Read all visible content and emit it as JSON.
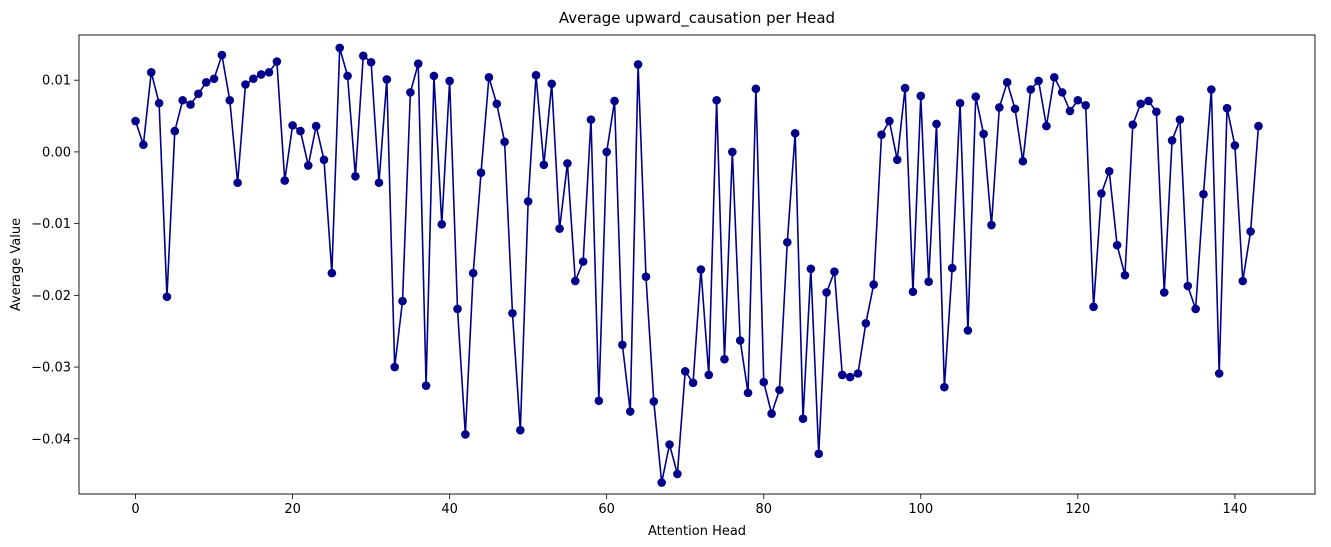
{
  "chart_data": {
    "type": "line",
    "title": "Average upward_causation per Head",
    "xlabel": "Attention Head",
    "ylabel": "Average Value",
    "xlim": [
      -7.2,
      150.2
    ],
    "ylim": [
      -0.0477,
      0.0163
    ],
    "xticks": [
      0,
      20,
      40,
      60,
      80,
      100,
      120,
      140
    ],
    "xtick_labels": [
      "0",
      "20",
      "40",
      "60",
      "80",
      "100",
      "120",
      "140"
    ],
    "yticks": [
      -0.04,
      -0.03,
      -0.02,
      -0.01,
      0.0,
      0.01
    ],
    "ytick_labels": [
      "−0.04",
      "−0.03",
      "−0.02",
      "−0.01",
      "0.00",
      "0.01"
    ],
    "grid": false,
    "legend": false,
    "marker": "circle",
    "colors": {
      "line": "#00008b",
      "marker": "#00008b",
      "axes": "#000000",
      "background": "#ffffff"
    },
    "series": [
      {
        "x": [
          0,
          1,
          2,
          3,
          4,
          5,
          6,
          7,
          8,
          9,
          10,
          11,
          12,
          13,
          14,
          15,
          16,
          17,
          18,
          19,
          20,
          21,
          22,
          23,
          24,
          25,
          26,
          27,
          28,
          29,
          30,
          31,
          32,
          33,
          34,
          35,
          36,
          37,
          38,
          39,
          40,
          41,
          42,
          43,
          44,
          45,
          46,
          47,
          48,
          49,
          50,
          51,
          52,
          53,
          54,
          55,
          56,
          57,
          58,
          59,
          60,
          61,
          62,
          63,
          64,
          65,
          66,
          67,
          68,
          69,
          70,
          71,
          72,
          73,
          74,
          75,
          76,
          77,
          78,
          79,
          80,
          81,
          82,
          83,
          84,
          85,
          86,
          87,
          88,
          89,
          90,
          91,
          92,
          93,
          94,
          95,
          96,
          97,
          98,
          99,
          100,
          101,
          102,
          103,
          104,
          105,
          106,
          107,
          108,
          109,
          110,
          111,
          112,
          113,
          114,
          115,
          116,
          117,
          118,
          119,
          120,
          121,
          122,
          123,
          124,
          125,
          126,
          127,
          128,
          129,
          130,
          131,
          132,
          133,
          134,
          135,
          136,
          137,
          138,
          139,
          140,
          141,
          142,
          143
        ],
        "values": [
          0.0043,
          0.001,
          0.0111,
          0.0068,
          -0.0202,
          0.0029,
          0.0072,
          0.0066,
          0.0081,
          0.0097,
          0.0102,
          0.0135,
          0.0072,
          -0.0043,
          0.0094,
          0.0102,
          0.0108,
          0.0111,
          0.0126,
          -0.004,
          0.0037,
          0.0029,
          -0.0019,
          0.0036,
          -0.0011,
          -0.0169,
          0.0145,
          0.0106,
          -0.0034,
          0.0134,
          0.0125,
          -0.0043,
          0.0101,
          -0.03,
          -0.0208,
          0.0083,
          0.0123,
          -0.0326,
          0.0106,
          -0.0101,
          0.0099,
          -0.0219,
          -0.0394,
          -0.0169,
          -0.0029,
          0.0104,
          0.0067,
          0.0014,
          -0.0225,
          -0.0388,
          -0.0069,
          0.0107,
          -0.0018,
          0.0095,
          -0.0107,
          -0.0016,
          -0.018,
          -0.0153,
          0.0045,
          -0.0347,
          0.0,
          0.0071,
          -0.0269,
          -0.0362,
          0.0122,
          -0.0174,
          -0.0348,
          -0.0461,
          -0.0408,
          -0.0449,
          -0.0306,
          -0.0322,
          -0.0164,
          -0.0311,
          0.0072,
          -0.0289,
          0.0,
          -0.0263,
          -0.0336,
          0.0088,
          -0.0321,
          -0.0365,
          -0.0332,
          -0.0126,
          0.0026,
          -0.0372,
          -0.0163,
          -0.0421,
          -0.0196,
          -0.0167,
          -0.0311,
          -0.0314,
          -0.0309,
          -0.0239,
          -0.0185,
          0.0024,
          0.0043,
          -0.0011,
          0.0089,
          -0.0195,
          0.0078,
          -0.0181,
          0.0039,
          -0.0328,
          -0.0162,
          0.0068,
          -0.0249,
          0.0077,
          0.0025,
          -0.0102,
          0.0062,
          0.0097,
          0.006,
          -0.0013,
          0.0087,
          0.0099,
          0.0036,
          0.0104,
          0.0083,
          0.0057,
          0.0072,
          0.0065,
          -0.0216,
          -0.0058,
          -0.0027,
          -0.013,
          -0.0172,
          0.0038,
          0.0067,
          0.0071,
          0.0056,
          -0.0196,
          0.0016,
          0.0045,
          -0.0187,
          -0.0219,
          -0.0059,
          0.0087,
          -0.0309,
          0.0061,
          0.0009,
          -0.018,
          -0.0111,
          0.0036
        ]
      }
    ]
  }
}
